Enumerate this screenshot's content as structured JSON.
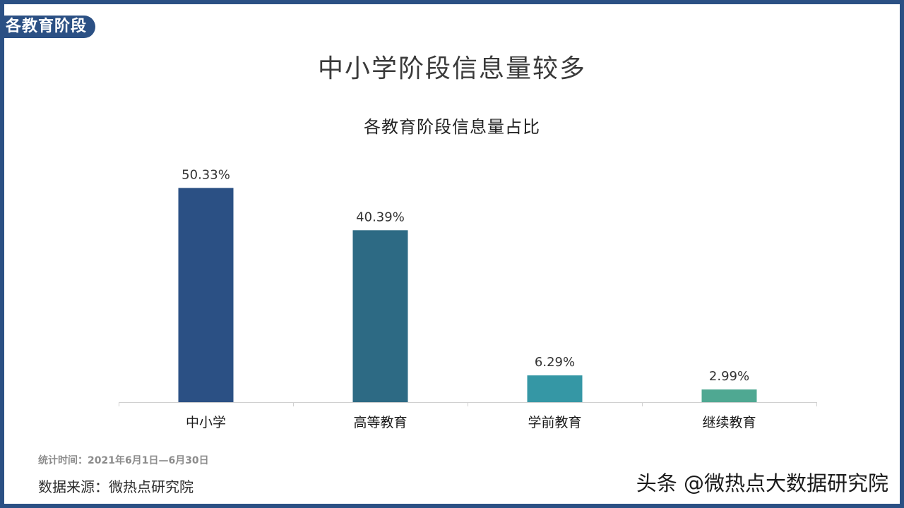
{
  "section_tag": "各教育阶段",
  "main_title": "中小学阶段信息量较多",
  "footer": {
    "period": "统计时间：2021年6月1日—6月30日",
    "source": "数据来源：微热点研究院"
  },
  "watermark": "头条 @微热点大数据研究院",
  "colors": {
    "frame": "#2b5084",
    "bars": [
      "#2b5084",
      "#2d6a84",
      "#3597a5",
      "#4fa892"
    ]
  },
  "chart_data": {
    "type": "bar",
    "title": "各教育阶段信息量占比",
    "categories": [
      "中小学",
      "高等教育",
      "学前教育",
      "继续教育"
    ],
    "values": [
      50.33,
      40.39,
      6.29,
      2.99
    ],
    "data_labels": [
      "50.33%",
      "40.39%",
      "6.29%",
      "2.99%"
    ],
    "unit": "%",
    "ylim": [
      0,
      60
    ],
    "grid": false,
    "legend": "none"
  }
}
